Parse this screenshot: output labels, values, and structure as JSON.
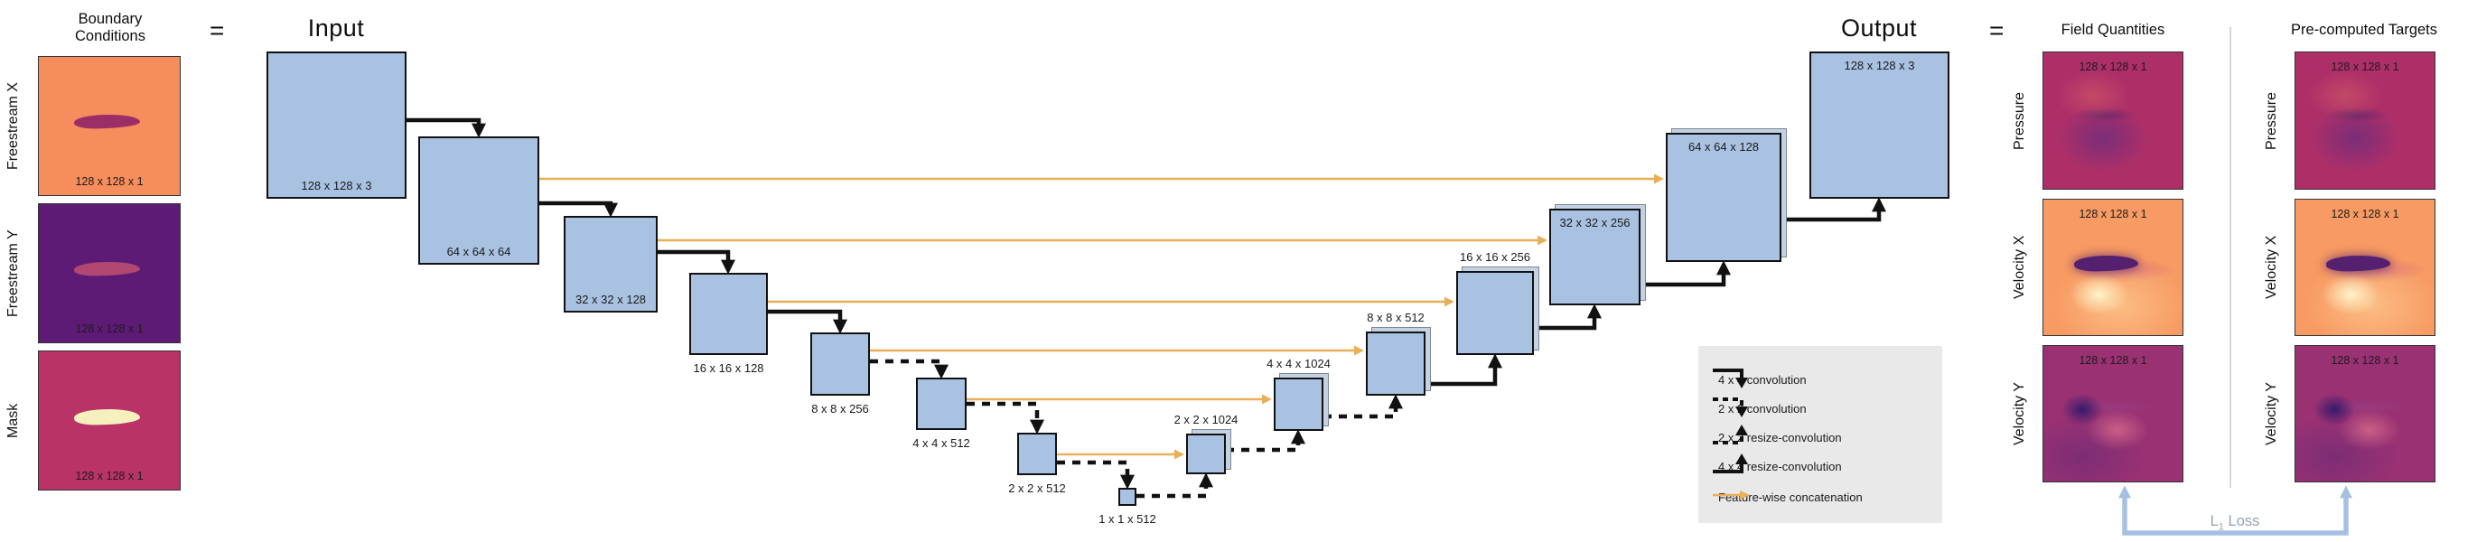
{
  "boundary": {
    "title_line1": "Boundary",
    "title_line2": "Conditions",
    "equals": "=",
    "items": [
      {
        "label": "Freestream X",
        "dims": "128 x 128 x 1"
      },
      {
        "label": "Freestream Y",
        "dims": "128 x 128 x 1"
      },
      {
        "label": "Mask",
        "dims": "128 x 128 x 1"
      }
    ]
  },
  "unet": {
    "input_title": "Input",
    "output_title": "Output",
    "blocks": [
      {
        "id": "input",
        "label": "128 x 128 x 3"
      },
      {
        "id": "enc-64",
        "label": "64 x 64 x 64"
      },
      {
        "id": "enc-32",
        "label": "32 x 32 x 128"
      },
      {
        "id": "enc-16",
        "label": "16 x 16 x 128"
      },
      {
        "id": "enc-8",
        "label": "8 x 8 x 256"
      },
      {
        "id": "enc-4",
        "label": "4 x 4 x 512"
      },
      {
        "id": "enc-2",
        "label": "2 x 2 x 512"
      },
      {
        "id": "bottleneck-1",
        "label": "1 x 1 x 512"
      },
      {
        "id": "dec-2",
        "label": "2 x 2 x 1024"
      },
      {
        "id": "dec-4",
        "label": "4 x 4 x 1024"
      },
      {
        "id": "dec-8",
        "label": "8 x 8 x 512"
      },
      {
        "id": "dec-16",
        "label": "16 x 16 x 256"
      },
      {
        "id": "dec-32",
        "label": "32 x 32 x 256"
      },
      {
        "id": "dec-64",
        "label": "64 x 64 x 128"
      },
      {
        "id": "output",
        "label": "128 x 128 x 3"
      }
    ]
  },
  "legend": {
    "items": [
      {
        "label": "4 x 4 convolution"
      },
      {
        "label": "2 x 2 convolution"
      },
      {
        "label": "2 x 2 resize-convolution"
      },
      {
        "label": "4 x 4 resize-convolution"
      },
      {
        "label": "Feature-wise concatenation"
      }
    ]
  },
  "results": {
    "equals": "=",
    "columns": [
      {
        "title": "Field Quantities",
        "rows": [
          {
            "label": "Pressure",
            "dims": "128 x 128 x 1"
          },
          {
            "label": "Velocity X",
            "dims": "128 x 128 x 1"
          },
          {
            "label": "Velocity Y",
            "dims": "128 x 128 x 1"
          }
        ]
      },
      {
        "title": "Pre-computed Targets",
        "rows": [
          {
            "label": "Pressure",
            "dims": "128 x 128 x 1"
          },
          {
            "label": "Velocity X",
            "dims": "128 x 128 x 1"
          },
          {
            "label": "Velocity Y",
            "dims": "128 x 128 x 1"
          }
        ]
      }
    ]
  },
  "loss": {
    "letter": "L",
    "sub": "1",
    "rest": "Loss"
  },
  "colors": {
    "block_fill": "#A9C2E2",
    "concat_yellow": "#E8AF58",
    "loss_blue": "#A6C0E2",
    "freestream_x_bg": "#F68D5C",
    "freestream_y_bg": "#5D1B76",
    "mask_bg": "#B93367",
    "pressure_bg": "#AE2F68",
    "velocity_x_bg": "#F89A63",
    "velocity_y_bg": "#9A3173",
    "legend_bg": "#E9E9E9"
  }
}
